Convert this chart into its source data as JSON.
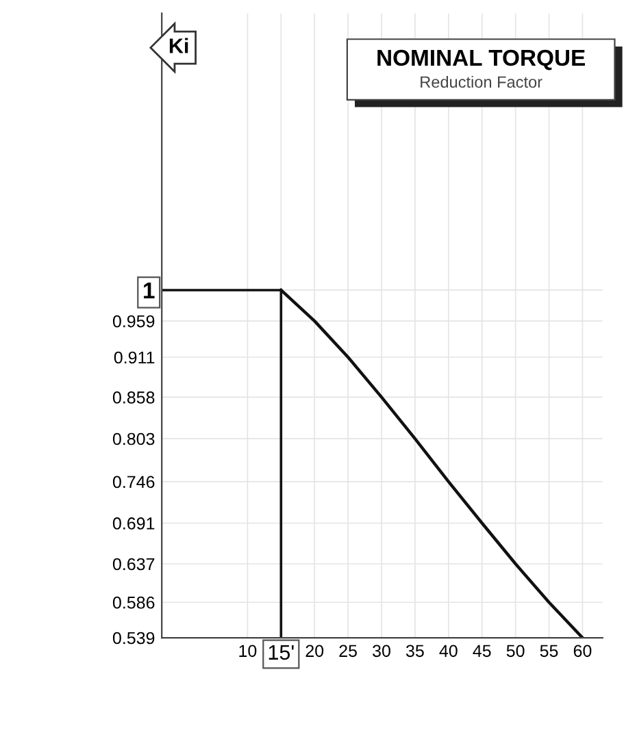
{
  "chart_data": {
    "type": "line",
    "title": "NOMINAL TORQUE",
    "subtitle": "Reduction Factor",
    "ylabel": "Ki",
    "x": [
      15,
      20,
      25,
      30,
      35,
      40,
      45,
      50,
      55,
      60
    ],
    "series": [
      {
        "color": "#111111",
        "values": [
          1,
          0.959,
          0.911,
          0.858,
          0.803,
          0.746,
          0.691,
          0.637,
          0.586,
          0.539
        ]
      }
    ],
    "xlim": [
      -2.8,
      63
    ],
    "ylim": [
      0.539,
      1.367
    ],
    "xticks": [
      10,
      {
        "value": 15,
        "label": "15'"
      },
      20,
      25,
      30,
      35,
      40,
      45,
      50,
      55,
      60
    ],
    "yticks": [
      1,
      0.959,
      0.911,
      0.858,
      0.803,
      0.746,
      0.691,
      0.637,
      0.586,
      0.539
    ],
    "ref_lines": [
      {
        "axis": "y",
        "value": 1,
        "color": "#111111"
      },
      {
        "axis": "x",
        "value": 15,
        "color": "#111111"
      }
    ],
    "grid": true,
    "marker": "none",
    "line_style": "solid"
  }
}
